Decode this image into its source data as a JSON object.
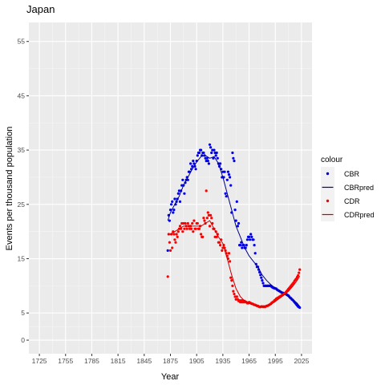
{
  "chart_data": {
    "type": "scatter",
    "title": "Japan",
    "xlabel": "Year",
    "ylabel": "Events per thousand population",
    "xlim": [
      1713,
      2037
    ],
    "ylim": [
      -2.5,
      58.5
    ],
    "xticks": [
      1725,
      1755,
      1785,
      1815,
      1845,
      1875,
      1905,
      1935,
      1965,
      1995,
      2025
    ],
    "yticks": [
      0,
      5,
      15,
      25,
      35,
      45,
      55
    ],
    "grid": true,
    "legend": {
      "title": "colour",
      "position": "right",
      "entries": [
        {
          "label": "CBR",
          "kind": "point",
          "color": "#0000ee"
        },
        {
          "label": "CBRpred",
          "kind": "line",
          "color": "#00008b"
        },
        {
          "label": "CDR",
          "kind": "point",
          "color": "#ff0000"
        },
        {
          "label": "CDRpred",
          "kind": "line",
          "color": "#cd0000"
        }
      ]
    },
    "series": [
      {
        "name": "CBR",
        "kind": "point",
        "color": "#0000ee",
        "x": [
          1872,
          1873,
          1874,
          1875,
          1876,
          1877,
          1878,
          1879,
          1880,
          1881,
          1882,
          1883,
          1884,
          1885,
          1886,
          1887,
          1888,
          1889,
          1890,
          1891,
          1892,
          1893,
          1894,
          1895,
          1896,
          1897,
          1898,
          1899,
          1900,
          1901,
          1902,
          1903,
          1904,
          1905,
          1906,
          1907,
          1908,
          1909,
          1910,
          1911,
          1912,
          1913,
          1914,
          1915,
          1916,
          1917,
          1918,
          1919,
          1920,
          1921,
          1922,
          1923,
          1924,
          1925,
          1926,
          1927,
          1928,
          1929,
          1930,
          1931,
          1932,
          1933,
          1934,
          1935,
          1936,
          1937,
          1938,
          1939,
          1940,
          1941,
          1942,
          1943,
          1944,
          1945,
          1946,
          1947,
          1948,
          1949,
          1950,
          1951,
          1952,
          1953,
          1954,
          1955,
          1956,
          1957,
          1958,
          1959,
          1960,
          1961,
          1962,
          1963,
          1964,
          1965,
          1966,
          1967,
          1968,
          1969,
          1970,
          1971,
          1972,
          1973,
          1974,
          1975,
          1976,
          1977,
          1978,
          1979,
          1980,
          1981,
          1982,
          1983,
          1984,
          1985,
          1986,
          1987,
          1988,
          1989,
          1990,
          1991,
          1992,
          1993,
          1994,
          1995,
          1996,
          1997,
          1998,
          1999,
          2000,
          2001,
          2002,
          2003,
          2004,
          2005,
          2006,
          2007,
          2008,
          2009,
          2010,
          2011,
          2012,
          2013,
          2014,
          2015,
          2016,
          2017,
          2018,
          2019,
          2020,
          2021,
          2022,
          2023
        ],
        "y": [
          16.5,
          23.0,
          22.0,
          24.0,
          25.0,
          25.5,
          23.5,
          24.0,
          26.0,
          25.0,
          25.5,
          26.0,
          27.0,
          27.5,
          25.5,
          27.5,
          28.5,
          29.5,
          28.5,
          27.0,
          29.0,
          29.5,
          30.0,
          29.5,
          31.0,
          31.0,
          32.5,
          31.5,
          32.0,
          33.0,
          32.5,
          32.0,
          31.5,
          33.0,
          34.0,
          34.5,
          34.5,
          35.0,
          35.0,
          34.0,
          34.5,
          34.5,
          34.0,
          33.5,
          33.0,
          33.5,
          33.0,
          32.5,
          36.0,
          35.5,
          34.5,
          35.0,
          33.5,
          35.0,
          34.5,
          34.0,
          34.5,
          33.5,
          32.5,
          32.0,
          32.5,
          31.5,
          30.0,
          31.0,
          30.0,
          31.0,
          27.0,
          26.5,
          29.5,
          31.0,
          30.5,
          30.0,
          28.5,
          23.5,
          34.5,
          33.5,
          33.0,
          24.0,
          22.0,
          25.5,
          21.0,
          21.5,
          17.5,
          17.5,
          18.0,
          17.0,
          17.5,
          17.5,
          17.0,
          17.0,
          17.5,
          18.5,
          19.0,
          19.0,
          18.5,
          19.5,
          19.0,
          18.5,
          18.5,
          17.5,
          16.0,
          14.0,
          13.5,
          13.5,
          13.0,
          12.5,
          12.0,
          11.5,
          11.0,
          10.5,
          10.0,
          10.0,
          10.0,
          10.0,
          10.0,
          10.0,
          10.0,
          10.0,
          10.0,
          9.8,
          9.7,
          9.6,
          9.6,
          9.5,
          9.5,
          9.3,
          9.2,
          9.1,
          9.0,
          8.9,
          8.8,
          8.7,
          8.7,
          8.6,
          8.6,
          8.5,
          8.4,
          8.3,
          8.2,
          8.0,
          7.8,
          7.7,
          7.5,
          7.4,
          7.2,
          7.0,
          6.8,
          6.6,
          6.4,
          6.2,
          6.1,
          6.0
        ]
      },
      {
        "name": "CBRpred",
        "kind": "line",
        "color": "#00008b",
        "x": [
          1872,
          1875,
          1880,
          1885,
          1890,
          1895,
          1900,
          1905,
          1910,
          1915,
          1920,
          1925,
          1930,
          1935,
          1940,
          1945,
          1950,
          1955,
          1960,
          1965,
          1970,
          1975,
          1980,
          1985,
          1990,
          1995,
          2000,
          2005,
          2010,
          2015,
          2020,
          2023
        ],
        "y": [
          22.0,
          23.5,
          25.0,
          26.5,
          28.5,
          30.0,
          31.5,
          32.8,
          33.8,
          34.0,
          33.5,
          33.8,
          32.5,
          30.0,
          27.0,
          24.0,
          21.0,
          19.0,
          17.0,
          15.5,
          14.5,
          13.5,
          12.0,
          11.0,
          10.2,
          9.6,
          9.0,
          8.5,
          8.0,
          7.5,
          6.8,
          6.2
        ]
      },
      {
        "name": "CDR",
        "kind": "point",
        "color": "#ff0000",
        "x": [
          1872,
          1873,
          1874,
          1875,
          1876,
          1877,
          1878,
          1879,
          1880,
          1881,
          1882,
          1883,
          1884,
          1885,
          1886,
          1887,
          1888,
          1889,
          1890,
          1891,
          1892,
          1893,
          1894,
          1895,
          1896,
          1897,
          1898,
          1899,
          1900,
          1901,
          1902,
          1903,
          1904,
          1905,
          1906,
          1907,
          1908,
          1909,
          1910,
          1911,
          1912,
          1913,
          1914,
          1915,
          1916,
          1917,
          1918,
          1919,
          1920,
          1921,
          1922,
          1923,
          1924,
          1925,
          1926,
          1927,
          1928,
          1929,
          1930,
          1931,
          1932,
          1933,
          1934,
          1935,
          1936,
          1937,
          1938,
          1939,
          1940,
          1941,
          1942,
          1943,
          1944,
          1945,
          1946,
          1947,
          1948,
          1949,
          1950,
          1951,
          1952,
          1953,
          1954,
          1955,
          1956,
          1957,
          1958,
          1959,
          1960,
          1961,
          1962,
          1963,
          1964,
          1965,
          1966,
          1967,
          1968,
          1969,
          1970,
          1971,
          1972,
          1973,
          1974,
          1975,
          1976,
          1977,
          1978,
          1979,
          1980,
          1981,
          1982,
          1983,
          1984,
          1985,
          1986,
          1987,
          1988,
          1989,
          1990,
          1991,
          1992,
          1993,
          1994,
          1995,
          1996,
          1997,
          1998,
          1999,
          2000,
          2001,
          2002,
          2003,
          2004,
          2005,
          2006,
          2007,
          2008,
          2009,
          2010,
          2011,
          2012,
          2013,
          2014,
          2015,
          2016,
          2017,
          2018,
          2019,
          2020,
          2021,
          2022,
          2023
        ],
        "y": [
          11.7,
          19.5,
          18.0,
          16.5,
          19.5,
          17.0,
          20.0,
          19.5,
          18.5,
          18.0,
          19.5,
          19.0,
          20.0,
          20.5,
          21.0,
          20.5,
          21.5,
          20.0,
          21.5,
          20.5,
          21.5,
          21.0,
          20.5,
          21.5,
          21.0,
          20.5,
          21.0,
          20.5,
          21.5,
          20.0,
          22.0,
          20.5,
          20.5,
          21.5,
          21.5,
          20.5,
          20.5,
          21.0,
          19.5,
          19.0,
          19.0,
          22.5,
          22.0,
          21.5,
          27.5,
          22.5,
          23.5,
          23.0,
          21.0,
          23.0,
          22.5,
          21.5,
          20.5,
          20.5,
          19.0,
          20.0,
          19.0,
          19.5,
          18.0,
          18.0,
          17.5,
          18.5,
          16.5,
          17.0,
          17.5,
          17.0,
          16.5,
          16.0,
          15.5,
          15.0,
          16.0,
          14.5,
          11.5,
          11.0,
          10.0,
          9.0,
          8.5,
          8.0,
          7.5,
          8.0,
          7.5,
          7.2,
          7.3,
          7.0,
          7.3,
          7.0,
          7.3,
          7.0,
          7.2,
          7.0,
          7.0,
          6.8,
          6.8,
          7.0,
          6.9,
          6.8,
          6.7,
          6.7,
          6.6,
          6.5,
          6.5,
          6.4,
          6.3,
          6.3,
          6.2,
          6.1,
          6.1,
          6.2,
          6.2,
          6.1,
          6.2,
          6.1,
          6.2,
          6.3,
          6.3,
          6.4,
          6.5,
          6.6,
          6.7,
          6.9,
          7.0,
          7.1,
          7.3,
          7.4,
          7.6,
          7.7,
          7.8,
          7.9,
          8.0,
          8.1,
          8.2,
          8.3,
          8.4,
          8.5,
          8.6,
          8.8,
          9.0,
          9.2,
          9.4,
          9.6,
          9.8,
          10.0,
          10.2,
          10.4,
          10.6,
          10.9,
          11.1,
          11.3,
          11.6,
          11.9,
          12.4,
          13.0
        ]
      },
      {
        "name": "CDRpred",
        "kind": "line",
        "color": "#cd0000",
        "x": [
          1872,
          1875,
          1880,
          1885,
          1890,
          1895,
          1900,
          1905,
          1910,
          1915,
          1920,
          1925,
          1930,
          1935,
          1940,
          1945,
          1950,
          1955,
          1960,
          1965,
          1970,
          1975,
          1980,
          1985,
          1990,
          1995,
          2000,
          2005,
          2010,
          2015,
          2020,
          2023
        ],
        "y": [
          19.5,
          19.5,
          20.0,
          20.5,
          21.0,
          21.0,
          21.0,
          21.0,
          21.0,
          21.5,
          22.0,
          20.5,
          19.0,
          17.8,
          15.0,
          12.0,
          9.5,
          8.0,
          7.2,
          6.8,
          6.5,
          6.3,
          6.2,
          6.3,
          6.6,
          7.1,
          7.7,
          8.3,
          9.0,
          9.9,
          11.0,
          11.8
        ]
      }
    ]
  }
}
